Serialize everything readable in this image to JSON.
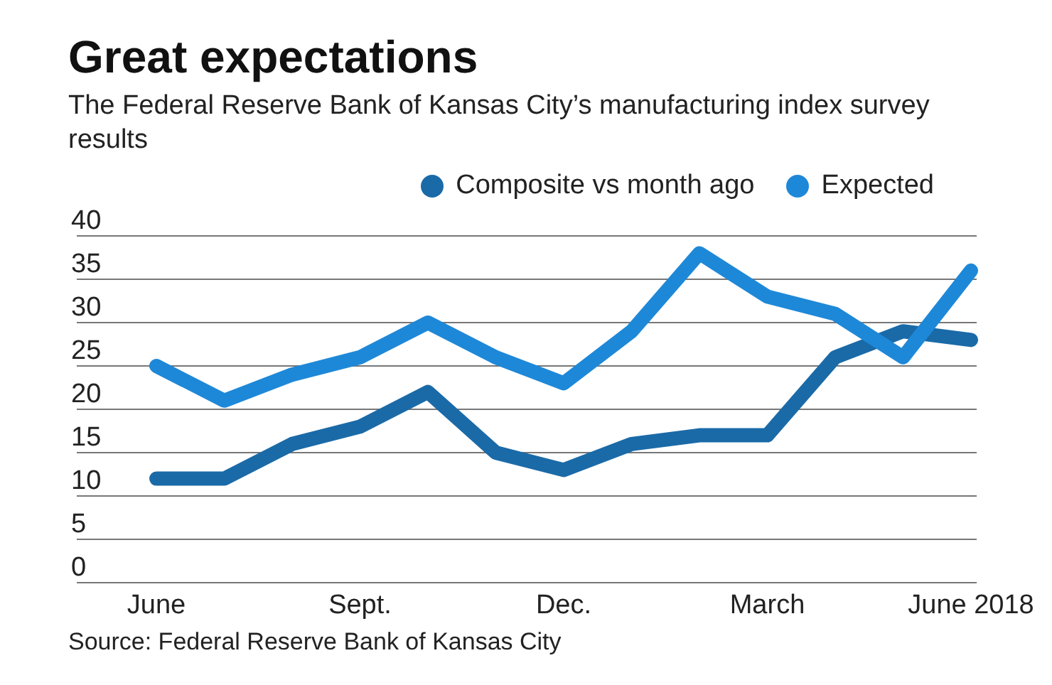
{
  "chart_data": {
    "type": "line",
    "title": "Great expectations",
    "subtitle": "The Federal Reserve Bank of Kansas City’s manufacturing index survey results",
    "categories": [
      "June",
      null,
      null,
      "Sept.",
      null,
      null,
      "Dec.",
      null,
      null,
      "March",
      null,
      null,
      "June 2018"
    ],
    "series": [
      {
        "name": "Composite vs month ago",
        "color": "#1a6aa8",
        "values": [
          12,
          12,
          16,
          18,
          22,
          15,
          13,
          16,
          17,
          17,
          26,
          29,
          28
        ]
      },
      {
        "name": "Expected",
        "color": "#1e88d8",
        "values": [
          25,
          21,
          24,
          26,
          30,
          26,
          23,
          29,
          38,
          33,
          31,
          26,
          36
        ]
      }
    ],
    "ylim": [
      0,
      40
    ],
    "yticks": [
      0,
      5,
      10,
      15,
      20,
      25,
      30,
      35,
      40
    ],
    "grid": "y",
    "legend": "top right",
    "marker": "none",
    "line_style": "solid",
    "annotations": [
      "Source: Federal Reserve Bank of Kansas City"
    ]
  }
}
